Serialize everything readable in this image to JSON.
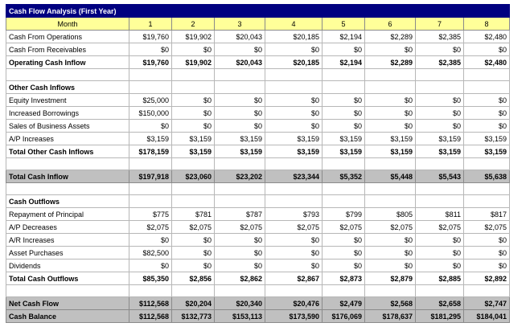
{
  "title": "Cash Flow Analysis (First Year)",
  "header": {
    "label": "Month",
    "months": [
      "1",
      "2",
      "3",
      "4",
      "5",
      "6",
      "7",
      "8"
    ]
  },
  "rows": [
    {
      "type": "data",
      "label": "Cash From Operations",
      "values": [
        "$19,760",
        "$19,902",
        "$20,043",
        "$20,185",
        "$2,194",
        "$2,289",
        "$2,385",
        "$2,480"
      ]
    },
    {
      "type": "data",
      "label": "Cash From Receivables",
      "values": [
        "$0",
        "$0",
        "$0",
        "$0",
        "$0",
        "$0",
        "$0",
        "$0"
      ]
    },
    {
      "type": "bold",
      "label": "Operating Cash Inflow",
      "values": [
        "$19,760",
        "$19,902",
        "$20,043",
        "$20,185",
        "$2,194",
        "$2,289",
        "$2,385",
        "$2,480"
      ]
    },
    {
      "type": "blank"
    },
    {
      "type": "section",
      "label": "Other Cash Inflows"
    },
    {
      "type": "data",
      "label": "Equity Investment",
      "values": [
        "$25,000",
        "$0",
        "$0",
        "$0",
        "$0",
        "$0",
        "$0",
        "$0"
      ]
    },
    {
      "type": "data",
      "label": "Increased Borrowings",
      "values": [
        "$150,000",
        "$0",
        "$0",
        "$0",
        "$0",
        "$0",
        "$0",
        "$0"
      ]
    },
    {
      "type": "data",
      "label": "Sales of Business Assets",
      "values": [
        "$0",
        "$0",
        "$0",
        "$0",
        "$0",
        "$0",
        "$0",
        "$0"
      ]
    },
    {
      "type": "data",
      "label": "A/P Increases",
      "values": [
        "$3,159",
        "$3,159",
        "$3,159",
        "$3,159",
        "$3,159",
        "$3,159",
        "$3,159",
        "$3,159"
      ]
    },
    {
      "type": "bold",
      "label": "Total Other Cash Inflows",
      "values": [
        "$178,159",
        "$3,159",
        "$3,159",
        "$3,159",
        "$3,159",
        "$3,159",
        "$3,159",
        "$3,159"
      ]
    },
    {
      "type": "blank"
    },
    {
      "type": "gray",
      "label": "Total Cash Inflow",
      "values": [
        "$197,918",
        "$23,060",
        "$23,202",
        "$23,344",
        "$5,352",
        "$5,448",
        "$5,543",
        "$5,638"
      ]
    },
    {
      "type": "blank"
    },
    {
      "type": "section",
      "label": "Cash Outflows"
    },
    {
      "type": "data",
      "label": "Repayment of Principal",
      "values": [
        "$775",
        "$781",
        "$787",
        "$793",
        "$799",
        "$805",
        "$811",
        "$817"
      ]
    },
    {
      "type": "data",
      "label": "A/P Decreases",
      "values": [
        "$2,075",
        "$2,075",
        "$2,075",
        "$2,075",
        "$2,075",
        "$2,075",
        "$2,075",
        "$2,075"
      ]
    },
    {
      "type": "data",
      "label": "A/R Increases",
      "values": [
        "$0",
        "$0",
        "$0",
        "$0",
        "$0",
        "$0",
        "$0",
        "$0"
      ]
    },
    {
      "type": "data",
      "label": "Asset Purchases",
      "values": [
        "$82,500",
        "$0",
        "$0",
        "$0",
        "$0",
        "$0",
        "$0",
        "$0"
      ]
    },
    {
      "type": "data",
      "label": "Dividends",
      "values": [
        "$0",
        "$0",
        "$0",
        "$0",
        "$0",
        "$0",
        "$0",
        "$0"
      ]
    },
    {
      "type": "bold",
      "label": "Total Cash Outflows",
      "values": [
        "$85,350",
        "$2,856",
        "$2,862",
        "$2,867",
        "$2,873",
        "$2,879",
        "$2,885",
        "$2,892"
      ]
    },
    {
      "type": "blank"
    },
    {
      "type": "gray",
      "label": "Net Cash Flow",
      "values": [
        "$112,568",
        "$20,204",
        "$20,340",
        "$20,476",
        "$2,479",
        "$2,568",
        "$2,658",
        "$2,747"
      ]
    },
    {
      "type": "gray",
      "label": "Cash Balance",
      "values": [
        "$112,568",
        "$132,773",
        "$153,113",
        "$173,590",
        "$176,069",
        "$178,637",
        "$181,295",
        "$184,041"
      ]
    }
  ]
}
